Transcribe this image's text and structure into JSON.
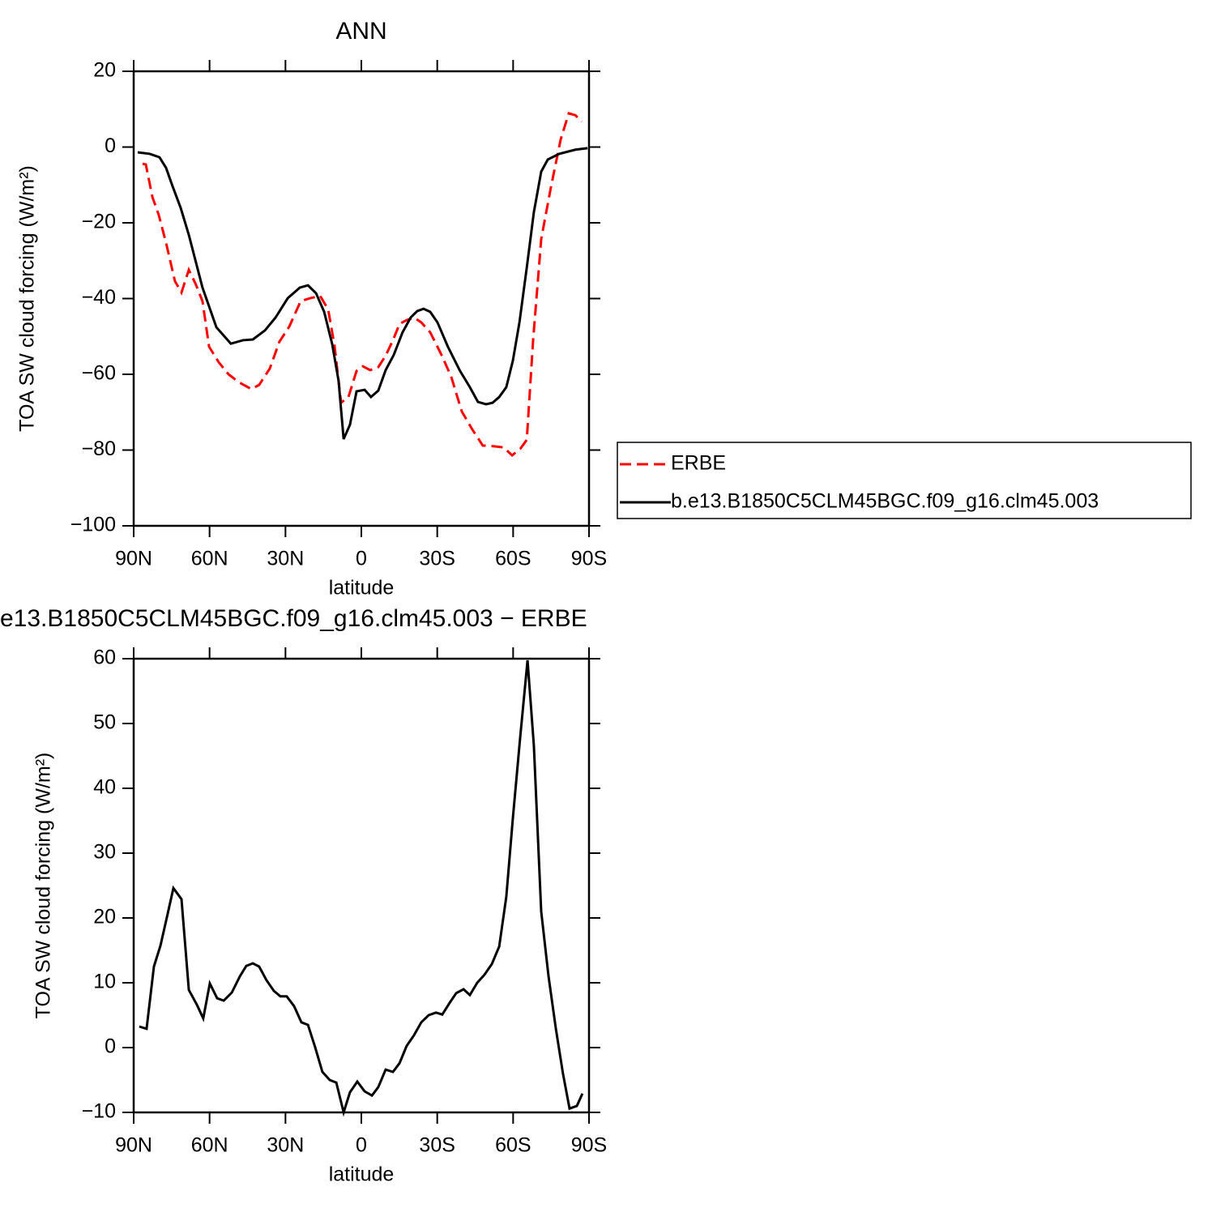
{
  "chart_data": [
    {
      "type": "line",
      "title": "ANN",
      "xlabel": "latitude",
      "ylabel": "TOA SW cloud forcing (W/m²)",
      "xlim": [
        90,
        -90
      ],
      "xticks": [
        {
          "value": 90,
          "label": "90N"
        },
        {
          "value": 60,
          "label": "60N"
        },
        {
          "value": 30,
          "label": "30N"
        },
        0,
        {
          "value": -30,
          "label": "30S"
        },
        {
          "value": -60,
          "label": "60S"
        },
        {
          "value": -90,
          "label": "90S"
        }
      ],
      "ylim": [
        -100,
        20
      ],
      "yticks": [
        {
          "value": -100,
          "label": "−100"
        },
        {
          "value": -80,
          "label": "−80"
        },
        {
          "value": -60,
          "label": "−60"
        },
        {
          "value": -40,
          "label": "−40"
        },
        {
          "value": -20,
          "label": "−20"
        },
        0,
        20
      ],
      "legend": "outside-right",
      "series": [
        {
          "name": "ERBE",
          "color": "#ff0000",
          "style": "dashed",
          "x": [
            86.5,
            85.2,
            82.6,
            80.1,
            77.2,
            73.7,
            71.1,
            68.2,
            65.6,
            62.8,
            60.2,
            56.4,
            52.5,
            48.4,
            43.5,
            40.4,
            36.2,
            32.4,
            28.5,
            24.0,
            20.2,
            16.3,
            13.1,
            10.6,
            8.0,
            5.1,
            1.9,
            -0.6,
            -3.5,
            -6.7,
            -9.6,
            -12.5,
            -15.1,
            -17.9,
            -20.8,
            -23.7,
            -27.2,
            -31.7,
            -35.5,
            -39.7,
            -43.8,
            -48.0,
            -52.5,
            -56.3,
            -59.6,
            -62.8,
            -65.4,
            -67.9,
            -71.1,
            -75.0,
            -78.8,
            -82.0,
            -84.6,
            -87.1
          ],
          "values": [
            -4.4,
            -4.6,
            -13.2,
            -17.9,
            -25.3,
            -35.4,
            -38.4,
            -32.4,
            -36.0,
            -40.7,
            -52.7,
            -56.8,
            -60.0,
            -62.1,
            -63.9,
            -62.8,
            -58.5,
            -51.4,
            -47.4,
            -40.7,
            -39.9,
            -39.3,
            -42.9,
            -52.5,
            -67.5,
            -66.0,
            -59.1,
            -57.9,
            -58.9,
            -58.1,
            -55.1,
            -51.0,
            -46.7,
            -45.7,
            -45.0,
            -46.3,
            -48.9,
            -54.9,
            -60.6,
            -69.8,
            -74.5,
            -78.8,
            -79.0,
            -79.3,
            -81.4,
            -79.7,
            -77.3,
            -51.0,
            -24.3,
            -10.4,
            2.0,
            8.9,
            8.4,
            6.7
          ]
        },
        {
          "name": "b.e13.B1850C5CLM45BGC.f09_g16.clm45.003",
          "color": "#000000",
          "style": "solid",
          "x": [
            88.4,
            83.6,
            79.8,
            77.2,
            74.6,
            71.4,
            68.2,
            62.8,
            57.3,
            51.6,
            46.8,
            42.9,
            38.1,
            33.9,
            29.1,
            24.3,
            21.1,
            17.9,
            14.7,
            11.5,
            9.0,
            7.0,
            4.5,
            1.9,
            -1.3,
            -3.8,
            -6.7,
            -9.6,
            -12.8,
            -16.3,
            -19.5,
            -22.1,
            -24.6,
            -27.2,
            -30.1,
            -34.2,
            -39.0,
            -42.9,
            -46.1,
            -49.3,
            -51.9,
            -54.5,
            -57.3,
            -59.9,
            -62.5,
            -65.4,
            -68.2,
            -71.1,
            -73.7,
            -78.2,
            -84.6,
            -89.4
          ],
          "values": [
            -1.4,
            -1.8,
            -2.7,
            -5.5,
            -10.4,
            -16.1,
            -23.2,
            -37.1,
            -47.6,
            -51.9,
            -51.0,
            -50.8,
            -48.4,
            -45.0,
            -39.9,
            -37.1,
            -36.5,
            -38.6,
            -43.5,
            -52.1,
            -61.7,
            -77.1,
            -73.3,
            -64.5,
            -64.1,
            -66.0,
            -64.3,
            -58.9,
            -54.9,
            -48.9,
            -45.0,
            -43.3,
            -42.7,
            -43.5,
            -46.3,
            -52.7,
            -59.1,
            -63.4,
            -67.3,
            -67.9,
            -67.5,
            -66.0,
            -63.4,
            -56.4,
            -46.3,
            -31.8,
            -17.2,
            -6.5,
            -3.3,
            -1.8,
            -0.7,
            -0.3
          ]
        }
      ]
    },
    {
      "type": "line",
      "title": "e13.B1850C5CLM45BGC.f09_g16.clm45.003 − ERBE",
      "xlabel": "latitude",
      "ylabel": "TOA SW cloud forcing (W/m²)",
      "xlim": [
        90,
        -90
      ],
      "xticks": [
        {
          "value": 90,
          "label": "90N"
        },
        {
          "value": 60,
          "label": "60N"
        },
        {
          "value": 30,
          "label": "30N"
        },
        0,
        {
          "value": -30,
          "label": "30S"
        },
        {
          "value": -60,
          "label": "60S"
        },
        {
          "value": -90,
          "label": "90S"
        }
      ],
      "ylim": [
        -10,
        60
      ],
      "yticks": [
        {
          "value": -10,
          "label": "−10"
        },
        0,
        10,
        20,
        30,
        40,
        50,
        60
      ],
      "series": [
        {
          "color": "#000000",
          "style": "solid",
          "x": [
            87.8,
            84.9,
            82.0,
            79.4,
            76.5,
            74.3,
            71.1,
            68.2,
            65.0,
            62.5,
            59.9,
            57.0,
            54.4,
            51.2,
            48.0,
            45.5,
            42.9,
            40.4,
            37.5,
            34.6,
            32.0,
            29.5,
            26.6,
            23.7,
            21.1,
            18.3,
            15.4,
            12.5,
            9.9,
            7.0,
            4.5,
            1.6,
            -1.3,
            -4.2,
            -6.7,
            -9.6,
            -12.5,
            -15.1,
            -17.9,
            -20.8,
            -23.7,
            -26.6,
            -29.5,
            -32.0,
            -34.9,
            -37.5,
            -40.4,
            -42.9,
            -45.8,
            -48.7,
            -51.6,
            -54.5,
            -57.3,
            -59.9,
            -62.8,
            -65.7,
            -68.2,
            -71.1,
            -74.0,
            -76.9,
            -79.7,
            -82.3,
            -85.2,
            -87.4
          ],
          "values": [
            3.25,
            2.9,
            12.5,
            15.75,
            20.75,
            24.6,
            22.9,
            8.9,
            6.6,
            4.5,
            9.9,
            7.6,
            7.25,
            8.5,
            11.0,
            12.6,
            13.0,
            12.5,
            10.4,
            8.75,
            7.9,
            7.9,
            6.4,
            3.9,
            3.5,
            0.1,
            -3.75,
            -5.0,
            -5.4,
            -10,
            -6.9,
            -5.25,
            -6.75,
            -7.4,
            -6.1,
            -3.4,
            -3.75,
            -2.4,
            0.25,
            1.9,
            3.9,
            5.0,
            5.4,
            5.1,
            6.9,
            8.4,
            9.0,
            8.1,
            10.0,
            11.25,
            12.9,
            15.6,
            23.25,
            35.4,
            47.9,
            59.75,
            46.6,
            21.0,
            11.0,
            2.9,
            -4.0,
            -9.4,
            -9.0,
            -7.1
          ]
        }
      ]
    }
  ]
}
